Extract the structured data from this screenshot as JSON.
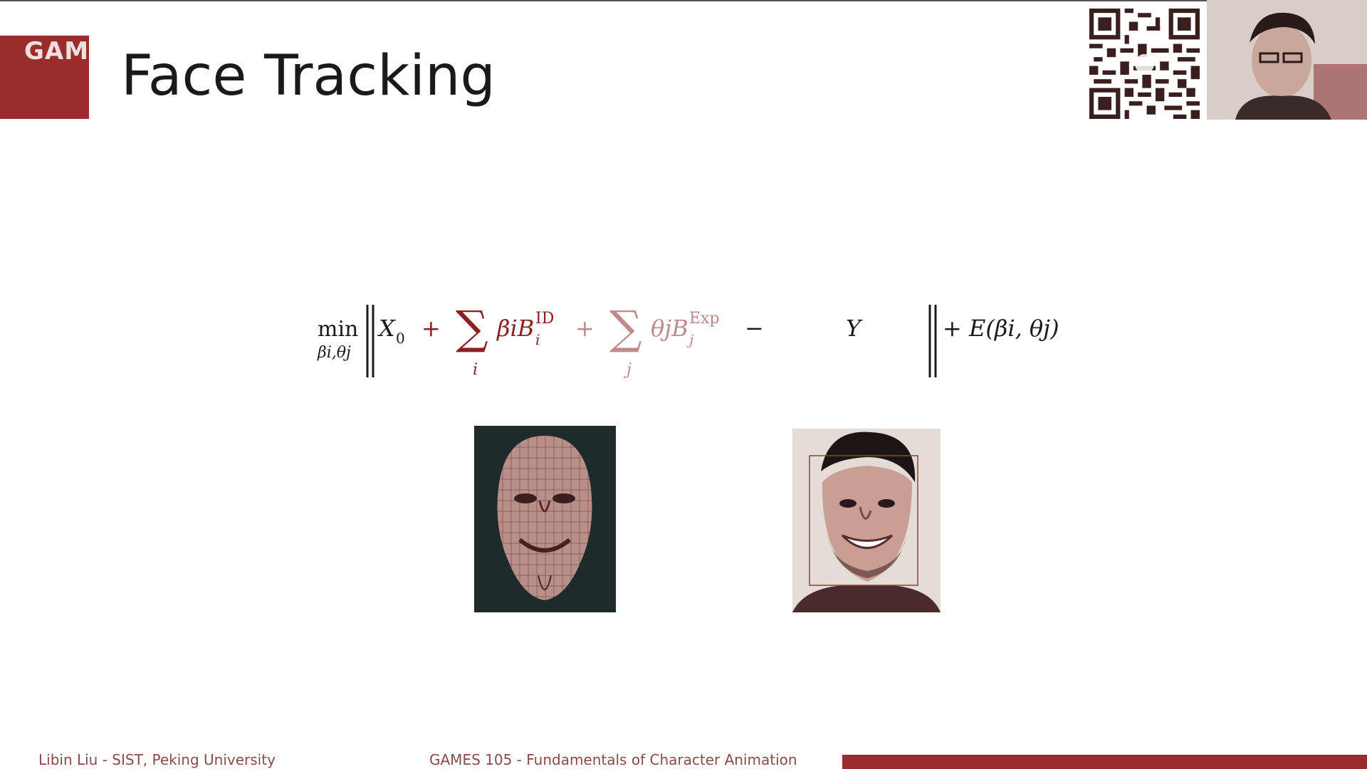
{
  "slide": {
    "corner_label": "GAME",
    "title": "Face Tracking",
    "footer_left": "Libin Liu - SIST, Peking University",
    "footer_center": "GAMES 105 - Fundamentals of Character Animation"
  },
  "formula": {
    "min": "min",
    "min_sub": "βi,θj",
    "x0": "X",
    "x0_sub": "0",
    "plus": "+",
    "sum": "∑",
    "sum_i_sub": "i",
    "sum_j_sub": "j",
    "beta_b": "βiB",
    "id_sup": "ID",
    "id_sub": "i",
    "theta_b": "θjB",
    "exp_sup": "Exp",
    "exp_sub": "j",
    "minus": "−",
    "y": "Y",
    "energy": "+ E(βi, θj)"
  },
  "colors": {
    "accent": "#9b2c2c",
    "text": "#1a1a1a",
    "formula_red": "#8b2020",
    "formula_faded": "#c08a8a"
  },
  "icons": {
    "qr": "qr-code-icon"
  }
}
